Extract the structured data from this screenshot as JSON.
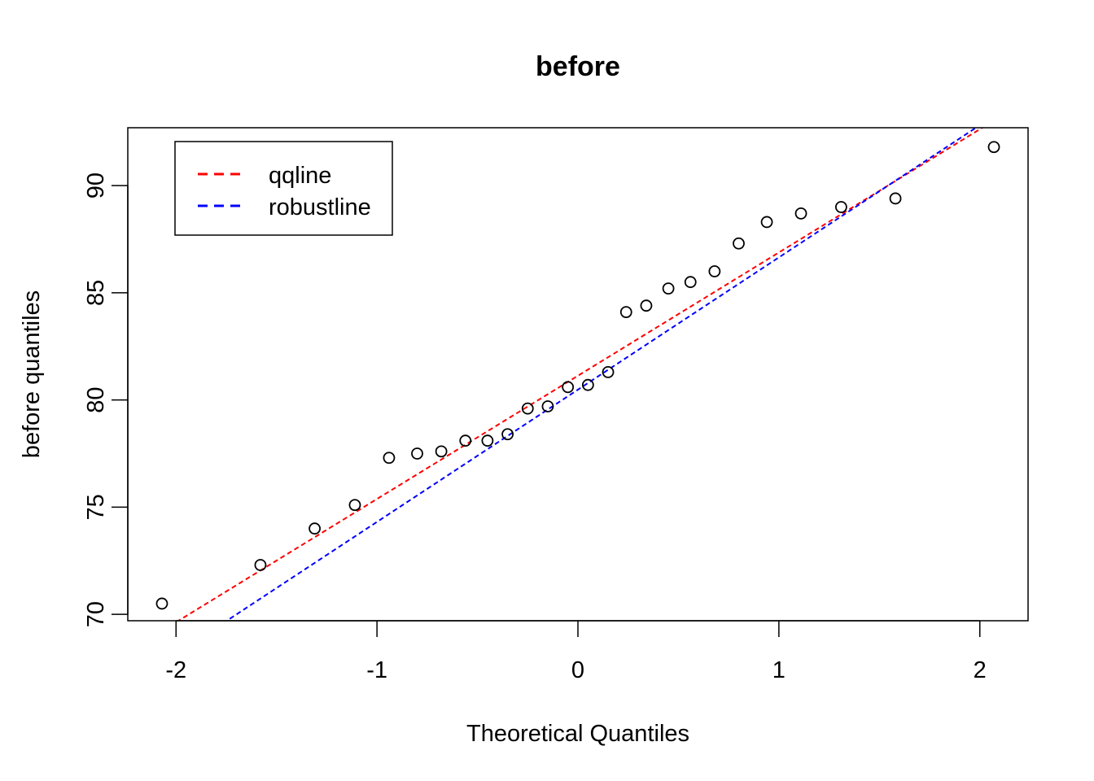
{
  "chart_data": {
    "type": "scatter",
    "title": "before",
    "xlabel": "Theoretical Quantiles",
    "ylabel": "before quantiles",
    "xlim": [
      -2.24,
      2.24
    ],
    "ylim": [
      69.7,
      92.7
    ],
    "x_ticks": [
      -2,
      -1,
      0,
      1,
      2
    ],
    "x_tick_labels": [
      "-2",
      "-1",
      "0",
      "1",
      "2"
    ],
    "y_ticks": [
      70,
      75,
      80,
      85,
      90
    ],
    "y_tick_labels": [
      "70",
      "75",
      "80",
      "85",
      "90"
    ],
    "grid": false,
    "legend": {
      "position": "top-left",
      "entries": [
        {
          "label": "qqline",
          "color": "#ff0000",
          "style": "dashed"
        },
        {
          "label": "robustline",
          "color": "#0000ff",
          "style": "dashed"
        }
      ]
    },
    "points": {
      "x": [
        -2.07,
        -1.58,
        -1.31,
        -1.11,
        -0.94,
        -0.8,
        -0.68,
        -0.56,
        -0.45,
        -0.35,
        -0.25,
        -0.15,
        -0.05,
        0.05,
        0.15,
        0.24,
        0.34,
        0.45,
        0.56,
        0.68,
        0.8,
        0.94,
        1.11,
        1.31,
        1.58,
        2.07
      ],
      "y": [
        70.5,
        72.3,
        74.0,
        75.1,
        77.3,
        77.5,
        77.6,
        78.1,
        78.1,
        78.4,
        79.6,
        79.7,
        80.6,
        80.7,
        81.3,
        84.1,
        84.4,
        85.2,
        85.5,
        86.0,
        87.3,
        88.3,
        88.7,
        89.0,
        89.4,
        91.8
      ]
    },
    "lines": [
      {
        "name": "qqline",
        "color": "#ff0000",
        "intercept": 81.13,
        "slope": 5.75
      },
      {
        "name": "robustline",
        "color": "#0000ff",
        "intercept": 80.48,
        "slope": 6.17
      }
    ]
  }
}
